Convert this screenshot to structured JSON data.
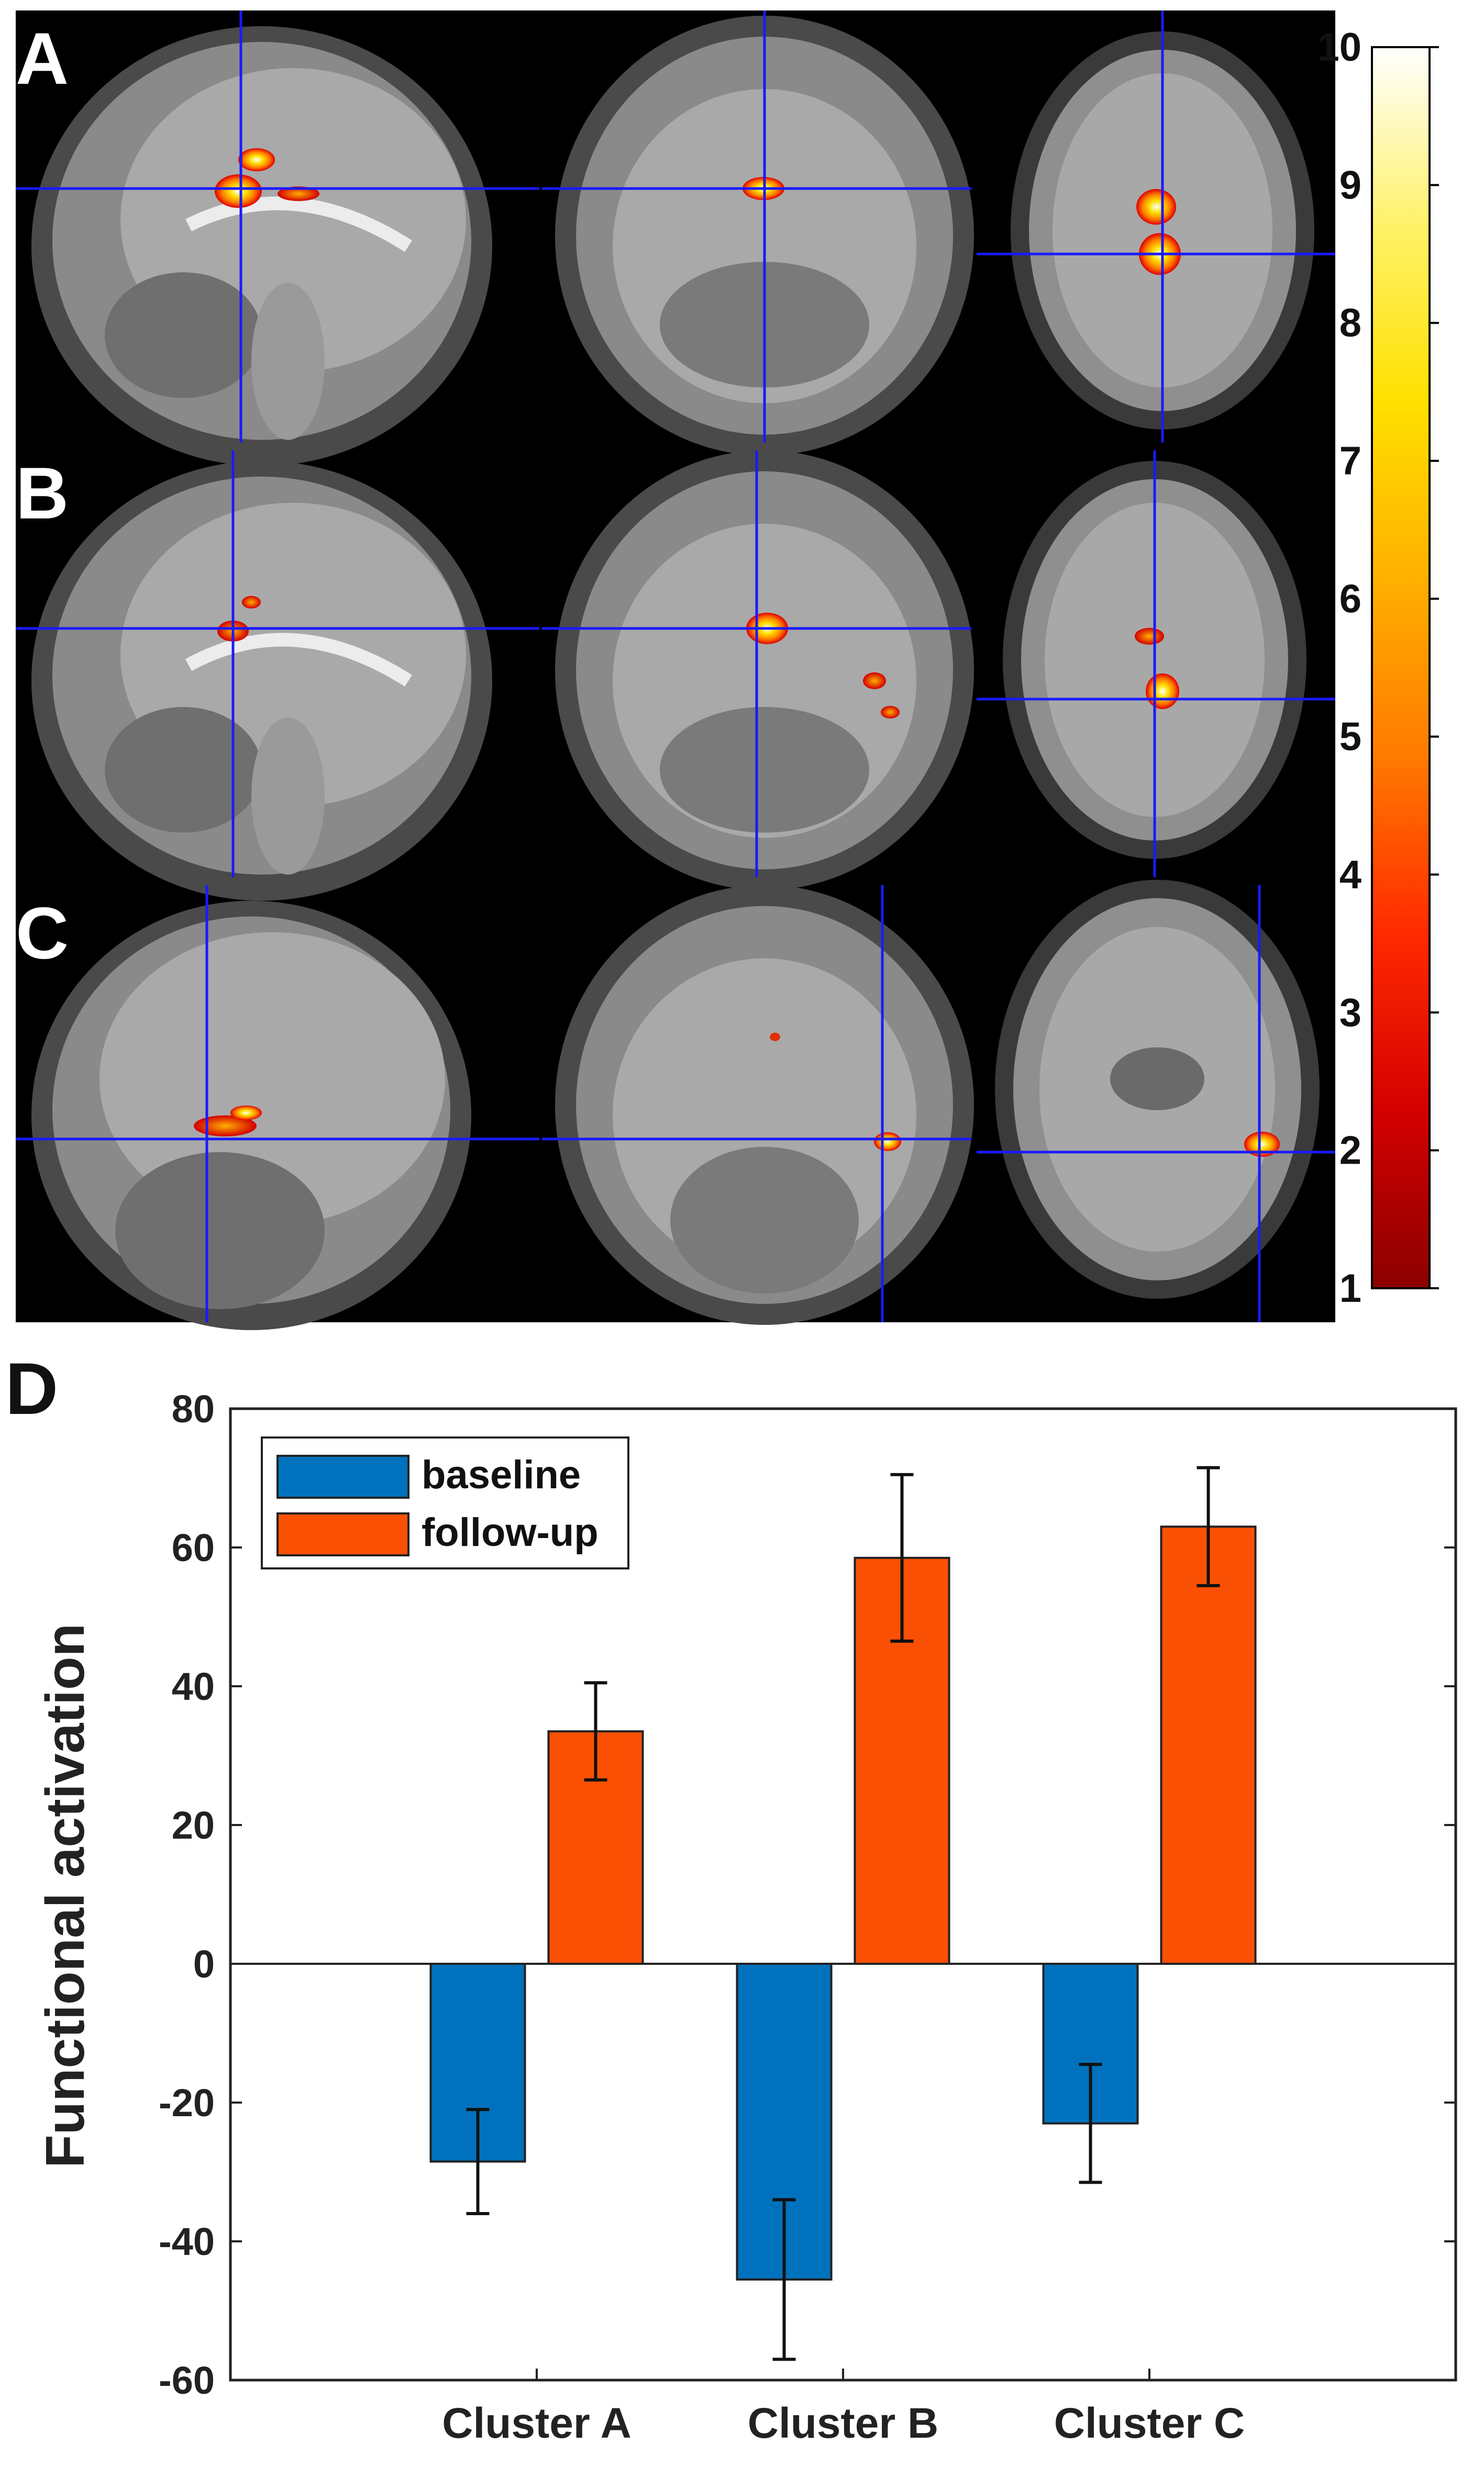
{
  "panels": {
    "a": {
      "label": "A"
    },
    "b": {
      "label": "B"
    },
    "c": {
      "label": "C"
    },
    "d": {
      "label": "D"
    }
  },
  "colorbar": {
    "ticks": [
      "10",
      "9",
      "8",
      "7",
      "6",
      "5",
      "4",
      "3",
      "2",
      "1"
    ],
    "min": 1,
    "max": 10,
    "colors": [
      "#8b0000",
      "#d40000",
      "#ff2a00",
      "#ff7a00",
      "#ffb000",
      "#ffe000",
      "#fff26a",
      "#ffffff"
    ]
  },
  "chart_data": {
    "type": "bar",
    "title": "",
    "xlabel": "",
    "ylabel": "Functional activation",
    "ylim": [
      -60,
      80
    ],
    "yticks": [
      -60,
      -40,
      -20,
      0,
      20,
      40,
      60,
      80
    ],
    "categories": [
      "Cluster A",
      "Cluster B",
      "Cluster C"
    ],
    "series": [
      {
        "name": "baseline",
        "color": "#0072bd",
        "values": [
          -28.5,
          -45.5,
          -23
        ],
        "errors": [
          7.5,
          11.5,
          8.5
        ]
      },
      {
        "name": "follow-up",
        "color": "#fa5004",
        "values": [
          33.5,
          58.5,
          63
        ],
        "errors": [
          7,
          12,
          8.5
        ]
      }
    ],
    "legend": "top-left"
  }
}
